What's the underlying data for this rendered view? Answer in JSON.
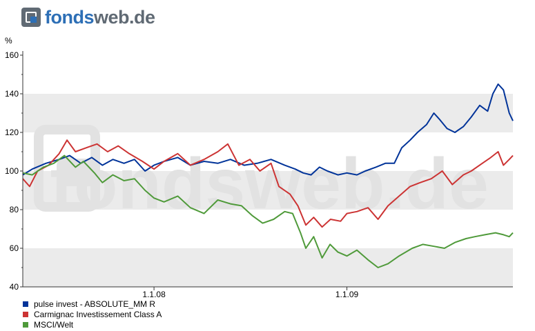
{
  "brand": {
    "part1": "fonds",
    "part2": "web.de",
    "watermark": "fondsweb.de"
  },
  "y_unit": "%",
  "colors": {
    "band": "#ebebeb",
    "axis": "#333333"
  },
  "chart_data": {
    "type": "line",
    "y_ticks": [
      "40",
      "60",
      "80",
      "100",
      "120",
      "140",
      "160"
    ],
    "ylim": [
      40,
      160
    ],
    "xlim": [
      "2007-04-27",
      "2009-11-12"
    ],
    "x_ticks": [
      {
        "label": "1.1.08",
        "date": "2008-01-01"
      },
      {
        "label": "1.1.09",
        "date": "2009-01-01"
      }
    ],
    "grid": "alternating horizontal bands",
    "legend_position": "bottom-left",
    "series": [
      {
        "name": "pulse invest - ABSOLUTE_MM R",
        "color": "#003399",
        "points": [
          [
            "2007-04-27",
            98
          ],
          [
            "2007-05-15",
            101
          ],
          [
            "2007-06-10",
            104
          ],
          [
            "2007-07-05",
            106
          ],
          [
            "2007-07-25",
            108
          ],
          [
            "2007-08-15",
            104
          ],
          [
            "2007-09-05",
            107
          ],
          [
            "2007-09-25",
            103
          ],
          [
            "2007-10-15",
            106
          ],
          [
            "2007-11-05",
            104
          ],
          [
            "2007-11-25",
            106
          ],
          [
            "2007-12-15",
            100
          ],
          [
            "2008-01-01",
            103
          ],
          [
            "2008-01-20",
            105
          ],
          [
            "2008-02-15",
            107
          ],
          [
            "2008-03-10",
            103
          ],
          [
            "2008-04-05",
            105
          ],
          [
            "2008-05-01",
            104
          ],
          [
            "2008-05-25",
            106
          ],
          [
            "2008-06-20",
            103
          ],
          [
            "2008-07-15",
            104
          ],
          [
            "2008-08-10",
            106
          ],
          [
            "2008-09-05",
            103
          ],
          [
            "2008-09-25",
            101
          ],
          [
            "2008-10-10",
            99
          ],
          [
            "2008-10-25",
            98
          ],
          [
            "2008-11-10",
            102
          ],
          [
            "2008-11-25",
            100
          ],
          [
            "2008-12-15",
            98
          ],
          [
            "2009-01-01",
            99
          ],
          [
            "2009-01-20",
            98
          ],
          [
            "2009-02-05",
            100
          ],
          [
            "2009-02-25",
            102
          ],
          [
            "2009-03-15",
            104
          ],
          [
            "2009-04-01",
            104
          ],
          [
            "2009-04-15",
            112
          ],
          [
            "2009-05-01",
            116
          ],
          [
            "2009-05-15",
            120
          ],
          [
            "2009-06-01",
            124
          ],
          [
            "2009-06-15",
            130
          ],
          [
            "2009-06-25",
            127
          ],
          [
            "2009-07-10",
            122
          ],
          [
            "2009-07-25",
            120
          ],
          [
            "2009-08-10",
            123
          ],
          [
            "2009-08-25",
            128
          ],
          [
            "2009-09-10",
            134
          ],
          [
            "2009-09-25",
            131
          ],
          [
            "2009-10-05",
            140
          ],
          [
            "2009-10-15",
            145
          ],
          [
            "2009-10-25",
            142
          ],
          [
            "2009-11-05",
            130
          ],
          [
            "2009-11-12",
            126
          ]
        ]
      },
      {
        "name": "Carmignac Investissement Class A",
        "color": "#cc3333",
        "points": [
          [
            "2007-04-27",
            96
          ],
          [
            "2007-05-10",
            92
          ],
          [
            "2007-05-25",
            100
          ],
          [
            "2007-06-15",
            103
          ],
          [
            "2007-07-05",
            109
          ],
          [
            "2007-07-20",
            116
          ],
          [
            "2007-08-05",
            110
          ],
          [
            "2007-08-25",
            112
          ],
          [
            "2007-09-15",
            114
          ],
          [
            "2007-10-05",
            110
          ],
          [
            "2007-10-25",
            113
          ],
          [
            "2007-11-15",
            109
          ],
          [
            "2007-12-10",
            105
          ],
          [
            "2008-01-01",
            101
          ],
          [
            "2008-01-20",
            105
          ],
          [
            "2008-02-15",
            109
          ],
          [
            "2008-03-10",
            103
          ],
          [
            "2008-04-05",
            106
          ],
          [
            "2008-05-01",
            110
          ],
          [
            "2008-05-20",
            114
          ],
          [
            "2008-06-10",
            103
          ],
          [
            "2008-07-01",
            106
          ],
          [
            "2008-07-20",
            100
          ],
          [
            "2008-08-10",
            104
          ],
          [
            "2008-08-25",
            92
          ],
          [
            "2008-09-15",
            88
          ],
          [
            "2008-09-30",
            82
          ],
          [
            "2008-10-15",
            72
          ],
          [
            "2008-10-30",
            76
          ],
          [
            "2008-11-15",
            71
          ],
          [
            "2008-12-01",
            75
          ],
          [
            "2008-12-20",
            74
          ],
          [
            "2009-01-01",
            78
          ],
          [
            "2009-01-20",
            79
          ],
          [
            "2009-02-10",
            81
          ],
          [
            "2009-03-01",
            75
          ],
          [
            "2009-03-20",
            82
          ],
          [
            "2009-04-10",
            87
          ],
          [
            "2009-05-01",
            92
          ],
          [
            "2009-05-20",
            94
          ],
          [
            "2009-06-10",
            96
          ],
          [
            "2009-07-01",
            100
          ],
          [
            "2009-07-20",
            93
          ],
          [
            "2009-08-10",
            98
          ],
          [
            "2009-08-25",
            100
          ],
          [
            "2009-09-15",
            104
          ],
          [
            "2009-10-01",
            107
          ],
          [
            "2009-10-15",
            110
          ],
          [
            "2009-10-25",
            103
          ],
          [
            "2009-11-05",
            106
          ],
          [
            "2009-11-12",
            108
          ]
        ]
      },
      {
        "name": "MSCI/Welt",
        "color": "#4f9a3a",
        "points": [
          [
            "2007-04-27",
            99
          ],
          [
            "2007-05-15",
            98
          ],
          [
            "2007-06-05",
            102
          ],
          [
            "2007-06-25",
            104
          ],
          [
            "2007-07-15",
            108
          ],
          [
            "2007-08-05",
            102
          ],
          [
            "2007-08-20",
            105
          ],
          [
            "2007-09-10",
            99
          ],
          [
            "2007-09-25",
            94
          ],
          [
            "2007-10-15",
            98
          ],
          [
            "2007-11-05",
            95
          ],
          [
            "2007-11-25",
            96
          ],
          [
            "2007-12-15",
            90
          ],
          [
            "2008-01-01",
            86
          ],
          [
            "2008-01-20",
            84
          ],
          [
            "2008-02-15",
            87
          ],
          [
            "2008-03-10",
            81
          ],
          [
            "2008-04-05",
            78
          ],
          [
            "2008-05-01",
            85
          ],
          [
            "2008-05-25",
            83
          ],
          [
            "2008-06-15",
            82
          ],
          [
            "2008-07-05",
            77
          ],
          [
            "2008-07-25",
            73
          ],
          [
            "2008-08-15",
            75
          ],
          [
            "2008-09-05",
            79
          ],
          [
            "2008-09-20",
            78
          ],
          [
            "2008-10-05",
            68
          ],
          [
            "2008-10-15",
            60
          ],
          [
            "2008-10-30",
            66
          ],
          [
            "2008-11-15",
            55
          ],
          [
            "2008-11-30",
            62
          ],
          [
            "2008-12-15",
            58
          ],
          [
            "2009-01-01",
            56
          ],
          [
            "2009-01-20",
            59
          ],
          [
            "2009-02-10",
            54
          ],
          [
            "2009-03-01",
            50
          ],
          [
            "2009-03-20",
            52
          ],
          [
            "2009-04-10",
            56
          ],
          [
            "2009-05-05",
            60
          ],
          [
            "2009-05-25",
            62
          ],
          [
            "2009-06-15",
            61
          ],
          [
            "2009-07-05",
            60
          ],
          [
            "2009-07-25",
            63
          ],
          [
            "2009-08-15",
            65
          ],
          [
            "2009-09-01",
            66
          ],
          [
            "2009-09-20",
            67
          ],
          [
            "2009-10-10",
            68
          ],
          [
            "2009-10-25",
            67
          ],
          [
            "2009-11-05",
            66
          ],
          [
            "2009-11-12",
            68
          ]
        ]
      }
    ]
  }
}
